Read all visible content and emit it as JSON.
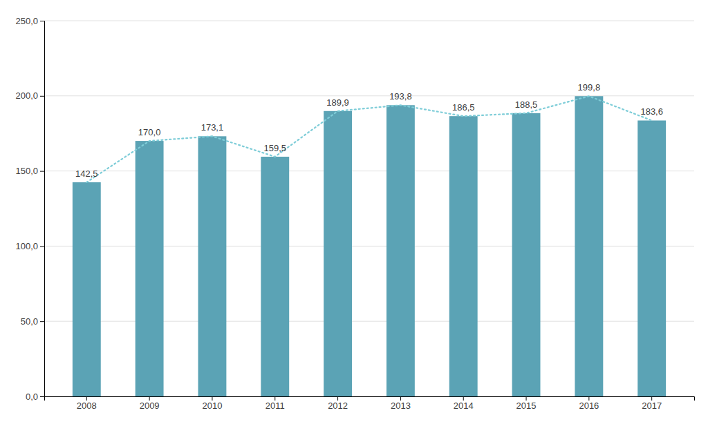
{
  "chart_data": {
    "type": "bar",
    "categories": [
      "2008",
      "2009",
      "2010",
      "2011",
      "2012",
      "2013",
      "2014",
      "2015",
      "2016",
      "2017"
    ],
    "series": [
      {
        "type": "bar",
        "color": "#5ba3b5",
        "values": [
          142.5,
          170.0,
          173.1,
          159.5,
          189.9,
          193.8,
          186.5,
          188.5,
          199.8,
          183.6
        ],
        "value_labels": [
          "142,5",
          "170,0",
          "173,1",
          "159,5",
          "189,9",
          "193,8",
          "186,5",
          "188,5",
          "199,8",
          "183,6"
        ]
      },
      {
        "type": "line",
        "color": "#7ecdd8",
        "line_style": "dotted",
        "values": [
          142.5,
          170.0,
          173.1,
          159.5,
          189.9,
          193.8,
          186.5,
          188.5,
          199.8,
          183.6
        ]
      }
    ],
    "data_labels": true,
    "ylim": [
      0,
      250
    ],
    "yticks": [
      {
        "value": 0,
        "label": "0,0"
      },
      {
        "value": 50,
        "label": "50,0"
      },
      {
        "value": 100,
        "label": "100,0"
      },
      {
        "value": 150,
        "label": "150,0"
      },
      {
        "value": 200,
        "label": "200,0"
      },
      {
        "value": 250,
        "label": "250,0"
      }
    ],
    "grid": true
  }
}
